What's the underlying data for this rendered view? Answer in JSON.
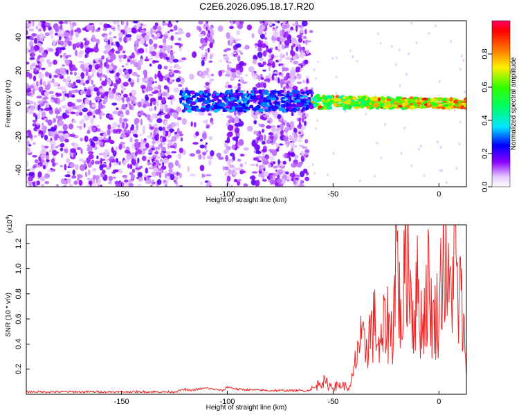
{
  "title": "C2E6.2026.095.18.17.R20",
  "chart_data": [
    {
      "type": "heatmap",
      "xlabel": "Height of straight line (km)",
      "ylabel": "Frequency (Hz)",
      "xlim": [
        -195,
        13
      ],
      "ylim": [
        -50,
        50
      ],
      "xticks": [
        -150,
        -100,
        -50,
        0
      ],
      "yticks": [
        -40,
        -20,
        0,
        20,
        40
      ],
      "grid": false,
      "colorbar": {
        "label": "Normalized spectral amplitude",
        "range": [
          0,
          1
        ],
        "ticks": [
          0.0,
          0.2,
          0.4,
          0.6,
          0.8
        ],
        "colormap": "rainbow"
      },
      "features": {
        "noise_region_x": [
          -195,
          -60
        ],
        "gap_regions_x": [
          [
            -122,
            -113
          ],
          [
            -107,
            -101
          ],
          [
            -93,
            -88
          ],
          [
            -62,
            -57
          ]
        ],
        "signal_band_center_hz": 0,
        "signal_band_x": [
          -122,
          13
        ],
        "strong_signal_x": [
          -60,
          13
        ]
      }
    },
    {
      "type": "line",
      "xlabel": "Height of straight line (km)",
      "ylabel": "SNR (10 * v/v)",
      "yscale_label": "(x10",
      "yscale_exp": "4",
      "yscale_close": ")",
      "xlim": [
        -195,
        13
      ],
      "ylim": [
        0,
        1.35
      ],
      "xticks": [
        -150,
        -100,
        -50,
        0
      ],
      "yticks": [
        0.2,
        0.4,
        0.6,
        0.8,
        1.0,
        1.2
      ],
      "color": "#ee2222",
      "series": [
        {
          "x": [
            -195,
            -180,
            -160,
            -140,
            -125,
            -120,
            -118,
            -110,
            -102,
            -100,
            -95,
            -80,
            -70,
            -62,
            -58,
            -56,
            -52,
            -50,
            -46,
            -42,
            -40,
            -38,
            -35,
            -33,
            -30,
            -28,
            -25,
            -22,
            -20,
            -18,
            -15,
            -12,
            -10,
            -8,
            -5,
            -3,
            0,
            2,
            5,
            8,
            9,
            10,
            12,
            13
          ],
          "y": [
            0.02,
            0.02,
            0.02,
            0.02,
            0.02,
            0.04,
            0.03,
            0.05,
            0.03,
            0.06,
            0.04,
            0.03,
            0.03,
            0.03,
            0.06,
            0.12,
            0.08,
            0.06,
            0.08,
            0.05,
            0.2,
            0.45,
            0.38,
            0.5,
            0.6,
            0.32,
            0.65,
            0.48,
            1.32,
            0.55,
            1.27,
            0.62,
            0.9,
            0.55,
            0.95,
            0.6,
            0.72,
            1.2,
            0.78,
            1.3,
            0.6,
            0.88,
            0.45,
            0.4
          ]
        }
      ]
    }
  ]
}
